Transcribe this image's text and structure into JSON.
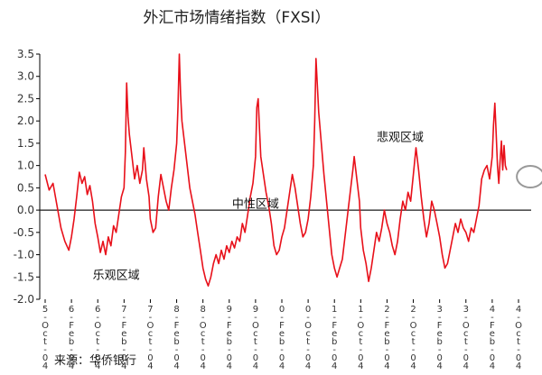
{
  "chart_data": {
    "type": "line",
    "title": "外汇市场情绪指数（FXSI）",
    "source": "来源：华侨银行",
    "ylim": [
      -2.0,
      3.5
    ],
    "yticks": [
      "-2.0",
      "-1.5",
      "-1.0",
      "-0.5",
      "0.0",
      "0.5",
      "1.0",
      "1.5",
      "2.0",
      "2.5",
      "3.0",
      "3.5"
    ],
    "xlabels": [
      "5-Oct-04",
      "6-Feb-04",
      "6-Oct-04",
      "7-Feb-04",
      "7-Oct-04",
      "8-Feb-04",
      "8-Oct-04",
      "9-Feb-04",
      "9-Oct-04",
      "0-Feb-04",
      "0-Oct-04",
      "1-Feb-04",
      "1-Oct-04",
      "2-Feb-04",
      "2-Oct-04",
      "3-Feb-04",
      "3-Oct-04",
      "4-Feb-04",
      "4-Oct-04"
    ],
    "annotations": [
      {
        "text": "悲观区域",
        "x": 13.5,
        "y": 1.55
      },
      {
        "text": "中性区域",
        "x": 8.0,
        "y": 0.05
      },
      {
        "text": "乐观区域",
        "x": 2.7,
        "y": -1.55
      }
    ],
    "highlight": {
      "x": 18.45,
      "y": 0.75
    },
    "colors": {
      "series": "#e8101a",
      "zero_line": "#1a1a1a",
      "circle": "#999999",
      "axis": "#000000"
    },
    "series": [
      {
        "values": [
          [
            0.0,
            0.8
          ],
          [
            0.15,
            0.45
          ],
          [
            0.3,
            0.6
          ],
          [
            0.45,
            0.1
          ],
          [
            0.6,
            -0.4
          ],
          [
            0.75,
            -0.7
          ],
          [
            0.9,
            -0.9
          ],
          [
            1.0,
            -0.6
          ],
          [
            1.1,
            -0.2
          ],
          [
            1.2,
            0.3
          ],
          [
            1.3,
            0.85
          ],
          [
            1.4,
            0.6
          ],
          [
            1.5,
            0.75
          ],
          [
            1.6,
            0.35
          ],
          [
            1.7,
            0.55
          ],
          [
            1.8,
            0.2
          ],
          [
            1.9,
            -0.3
          ],
          [
            2.0,
            -0.6
          ],
          [
            2.1,
            -0.95
          ],
          [
            2.2,
            -0.7
          ],
          [
            2.3,
            -1.0
          ],
          [
            2.4,
            -0.6
          ],
          [
            2.5,
            -0.8
          ],
          [
            2.6,
            -0.35
          ],
          [
            2.7,
            -0.5
          ],
          [
            2.8,
            -0.1
          ],
          [
            2.9,
            0.3
          ],
          [
            3.0,
            0.5
          ],
          [
            3.05,
            1.3
          ],
          [
            3.1,
            2.85
          ],
          [
            3.15,
            2.1
          ],
          [
            3.2,
            1.7
          ],
          [
            3.3,
            1.2
          ],
          [
            3.4,
            0.7
          ],
          [
            3.5,
            1.0
          ],
          [
            3.6,
            0.6
          ],
          [
            3.7,
            0.9
          ],
          [
            3.75,
            1.4
          ],
          [
            3.85,
            0.7
          ],
          [
            3.95,
            0.3
          ],
          [
            4.0,
            -0.2
          ],
          [
            4.1,
            -0.5
          ],
          [
            4.2,
            -0.4
          ],
          [
            4.3,
            0.3
          ],
          [
            4.4,
            0.8
          ],
          [
            4.5,
            0.5
          ],
          [
            4.6,
            0.2
          ],
          [
            4.7,
            0.0
          ],
          [
            4.8,
            0.5
          ],
          [
            4.9,
            0.9
          ],
          [
            5.0,
            1.5
          ],
          [
            5.05,
            2.3
          ],
          [
            5.1,
            3.5
          ],
          [
            5.15,
            2.6
          ],
          [
            5.2,
            2.0
          ],
          [
            5.3,
            1.5
          ],
          [
            5.4,
            1.0
          ],
          [
            5.5,
            0.5
          ],
          [
            5.6,
            0.2
          ],
          [
            5.7,
            -0.1
          ],
          [
            5.8,
            -0.5
          ],
          [
            5.9,
            -0.9
          ],
          [
            6.0,
            -1.3
          ],
          [
            6.1,
            -1.55
          ],
          [
            6.2,
            -1.7
          ],
          [
            6.3,
            -1.5
          ],
          [
            6.4,
            -1.2
          ],
          [
            6.5,
            -1.0
          ],
          [
            6.6,
            -1.2
          ],
          [
            6.7,
            -0.9
          ],
          [
            6.8,
            -1.1
          ],
          [
            6.9,
            -0.8
          ],
          [
            7.0,
            -0.95
          ],
          [
            7.1,
            -0.7
          ],
          [
            7.2,
            -0.85
          ],
          [
            7.3,
            -0.6
          ],
          [
            7.4,
            -0.7
          ],
          [
            7.5,
            -0.3
          ],
          [
            7.6,
            -0.5
          ],
          [
            7.7,
            -0.1
          ],
          [
            7.8,
            0.3
          ],
          [
            7.9,
            0.6
          ],
          [
            8.0,
            1.2
          ],
          [
            8.05,
            2.3
          ],
          [
            8.1,
            2.5
          ],
          [
            8.15,
            1.8
          ],
          [
            8.2,
            1.2
          ],
          [
            8.3,
            0.8
          ],
          [
            8.4,
            0.4
          ],
          [
            8.5,
            0.1
          ],
          [
            8.6,
            -0.3
          ],
          [
            8.7,
            -0.8
          ],
          [
            8.8,
            -1.0
          ],
          [
            8.9,
            -0.9
          ],
          [
            9.0,
            -0.6
          ],
          [
            9.1,
            -0.4
          ],
          [
            9.2,
            0.0
          ],
          [
            9.3,
            0.4
          ],
          [
            9.4,
            0.8
          ],
          [
            9.5,
            0.5
          ],
          [
            9.6,
            0.1
          ],
          [
            9.7,
            -0.3
          ],
          [
            9.8,
            -0.6
          ],
          [
            9.9,
            -0.5
          ],
          [
            10.0,
            -0.2
          ],
          [
            10.1,
            0.3
          ],
          [
            10.2,
            1.0
          ],
          [
            10.25,
            2.0
          ],
          [
            10.3,
            3.4
          ],
          [
            10.35,
            2.8
          ],
          [
            10.4,
            2.2
          ],
          [
            10.5,
            1.5
          ],
          [
            10.6,
            0.8
          ],
          [
            10.7,
            0.2
          ],
          [
            10.8,
            -0.4
          ],
          [
            10.9,
            -1.0
          ],
          [
            11.0,
            -1.3
          ],
          [
            11.1,
            -1.5
          ],
          [
            11.2,
            -1.3
          ],
          [
            11.3,
            -1.1
          ],
          [
            11.4,
            -0.6
          ],
          [
            11.5,
            -0.1
          ],
          [
            11.6,
            0.4
          ],
          [
            11.7,
            0.9
          ],
          [
            11.75,
            1.2
          ],
          [
            11.85,
            0.7
          ],
          [
            11.95,
            0.2
          ],
          [
            12.0,
            -0.4
          ],
          [
            12.1,
            -0.9
          ],
          [
            12.2,
            -1.2
          ],
          [
            12.3,
            -1.6
          ],
          [
            12.4,
            -1.3
          ],
          [
            12.5,
            -0.9
          ],
          [
            12.6,
            -0.5
          ],
          [
            12.7,
            -0.7
          ],
          [
            12.8,
            -0.4
          ],
          [
            12.9,
            0.0
          ],
          [
            13.0,
            -0.3
          ],
          [
            13.1,
            -0.5
          ],
          [
            13.2,
            -0.8
          ],
          [
            13.3,
            -1.0
          ],
          [
            13.4,
            -0.7
          ],
          [
            13.5,
            -0.2
          ],
          [
            13.6,
            0.2
          ],
          [
            13.7,
            0.0
          ],
          [
            13.8,
            0.4
          ],
          [
            13.9,
            0.2
          ],
          [
            14.0,
            0.8
          ],
          [
            14.1,
            1.4
          ],
          [
            14.2,
            0.9
          ],
          [
            14.3,
            0.3
          ],
          [
            14.4,
            -0.2
          ],
          [
            14.5,
            -0.6
          ],
          [
            14.6,
            -0.3
          ],
          [
            14.7,
            0.2
          ],
          [
            14.8,
            0.0
          ],
          [
            14.9,
            -0.3
          ],
          [
            15.0,
            -0.6
          ],
          [
            15.1,
            -1.0
          ],
          [
            15.2,
            -1.3
          ],
          [
            15.3,
            -1.2
          ],
          [
            15.4,
            -0.9
          ],
          [
            15.5,
            -0.6
          ],
          [
            15.6,
            -0.3
          ],
          [
            15.7,
            -0.5
          ],
          [
            15.8,
            -0.2
          ],
          [
            15.9,
            -0.4
          ],
          [
            16.0,
            -0.5
          ],
          [
            16.1,
            -0.7
          ],
          [
            16.2,
            -0.4
          ],
          [
            16.3,
            -0.5
          ],
          [
            16.4,
            -0.2
          ],
          [
            16.5,
            0.1
          ],
          [
            16.6,
            0.7
          ],
          [
            16.7,
            0.9
          ],
          [
            16.8,
            1.0
          ],
          [
            16.9,
            0.7
          ],
          [
            17.0,
            1.2
          ],
          [
            17.05,
            1.9
          ],
          [
            17.1,
            2.4
          ],
          [
            17.15,
            1.7
          ],
          [
            17.2,
            1.0
          ],
          [
            17.25,
            0.6
          ],
          [
            17.3,
            1.1
          ],
          [
            17.35,
            1.55
          ],
          [
            17.4,
            0.9
          ],
          [
            17.45,
            1.45
          ],
          [
            17.5,
            1.0
          ],
          [
            17.55,
            0.9
          ]
        ]
      }
    ]
  }
}
